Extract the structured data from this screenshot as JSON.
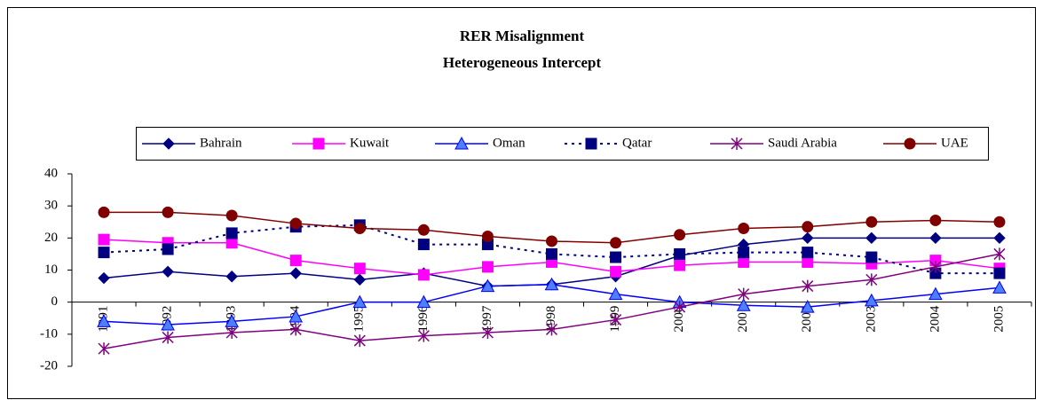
{
  "chart_data": {
    "type": "line",
    "title": "RER Misalignment",
    "subtitle": "Heterogeneous Intercept",
    "categories": [
      "1991",
      "1992",
      "1993",
      "1994",
      "1995",
      "1996",
      "1997",
      "1998",
      "1999",
      "2000",
      "2001",
      "2002",
      "2003",
      "2004",
      "2005"
    ],
    "series": [
      {
        "name": "Bahrain",
        "color": "#000080",
        "marker": "diamond",
        "line_style": "solid",
        "values": [
          7.5,
          9.5,
          8,
          9,
          7,
          9,
          5,
          5.5,
          8,
          14.5,
          18,
          20,
          20,
          20,
          20
        ]
      },
      {
        "name": "Kuwait",
        "color": "#ff00ff",
        "marker": "square",
        "line_style": "solid",
        "values": [
          19.5,
          18.5,
          18.5,
          13,
          10.5,
          8.5,
          11,
          12.5,
          9.5,
          11.5,
          12.5,
          12.5,
          12,
          13,
          10.5
        ]
      },
      {
        "name": "Oman",
        "color": "#0000ff",
        "marker": "triangle",
        "line_style": "solid",
        "values": [
          -6,
          -7,
          -6,
          -4.5,
          0,
          0,
          5,
          5.5,
          2.5,
          0,
          -1,
          -1.5,
          0.5,
          2.5,
          4.5
        ]
      },
      {
        "name": "Qatar",
        "color": "#000080",
        "marker": "square",
        "line_style": "dotted",
        "values": [
          15.5,
          16.5,
          21.5,
          23.5,
          24,
          18,
          18,
          15,
          14,
          15,
          15.5,
          15.5,
          14,
          9,
          9
        ]
      },
      {
        "name": "Saudi Arabia",
        "color": "#800080",
        "marker": "star",
        "line_style": "solid",
        "values": [
          -14.5,
          -11,
          -9.5,
          -8.5,
          -12,
          -10.5,
          -9.5,
          -8.5,
          -5.5,
          -1.5,
          2.5,
          5,
          7,
          11,
          15
        ]
      },
      {
        "name": "UAE",
        "color": "#800000",
        "marker": "circle",
        "line_style": "solid",
        "values": [
          28,
          28,
          27,
          24.5,
          23,
          22.5,
          20.5,
          19,
          18.5,
          21,
          23,
          23.5,
          25,
          25.5,
          25
        ]
      }
    ],
    "ylim": [
      -20,
      40
    ],
    "yticks": [
      -20,
      -10,
      0,
      10,
      20,
      30,
      40
    ],
    "grid": false,
    "legend": "top"
  }
}
